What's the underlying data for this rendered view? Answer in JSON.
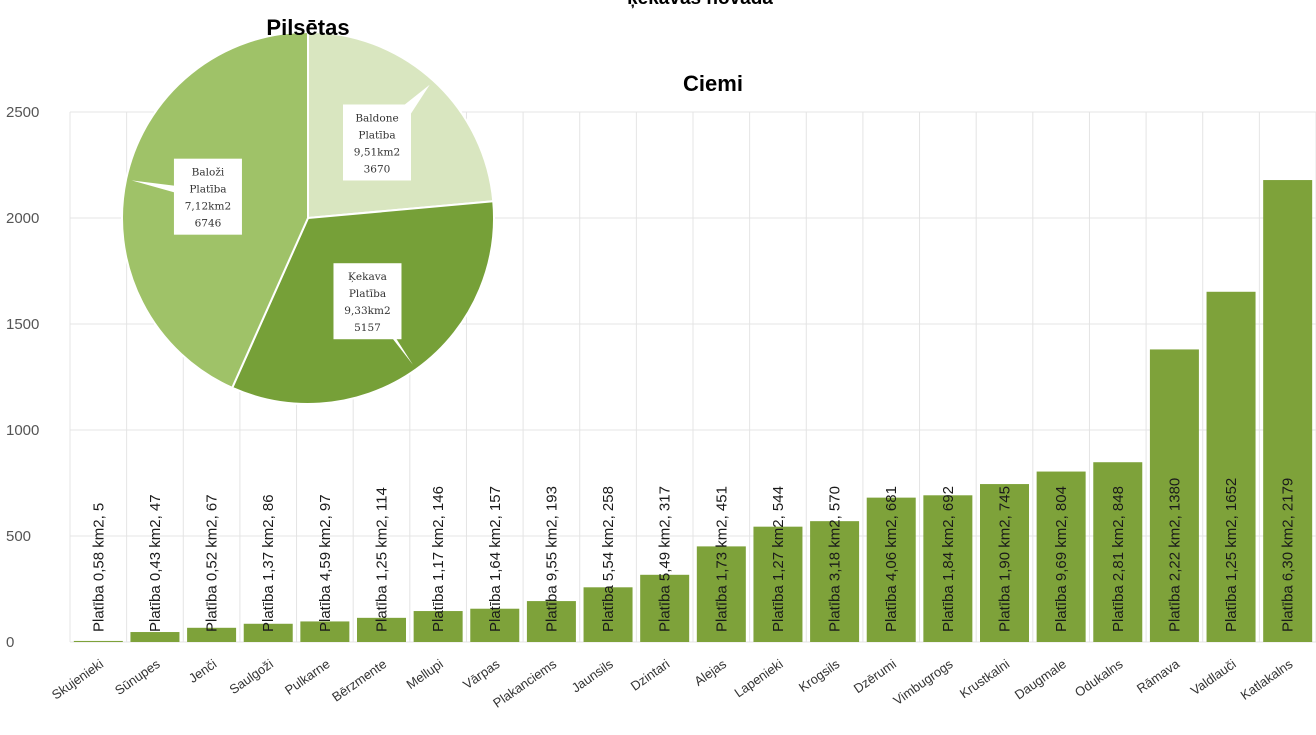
{
  "header_fragment": "ķekavas novadā",
  "pie_title": "Pilsētas",
  "bar_title": "Ciemi",
  "colors": {
    "bar": "#7ea23a",
    "grid": "#e4e4e4",
    "pie_baldone": "#d9e6c0",
    "pie_kekava": "#76a038",
    "pie_balozi": "#9fc268"
  },
  "chart_data": [
    {
      "type": "pie",
      "title": "Pilsētas",
      "slices": [
        {
          "lines": [
            "Baldone",
            "Platība",
            "9,51km2",
            "3670"
          ],
          "value": 3670
        },
        {
          "lines": [
            "Ķekava",
            "Platība",
            "9,33km2",
            "5157"
          ],
          "value": 5157
        },
        {
          "lines": [
            "Baloži",
            "Platība",
            "7,12km2",
            "6746"
          ],
          "value": 6746
        }
      ]
    },
    {
      "type": "bar",
      "title": "Ciemi",
      "ylim": [
        0,
        2500
      ],
      "yticks": [
        "0",
        "500",
        "1000",
        "1500",
        "2000",
        "2500"
      ],
      "grid": true,
      "categories": [
        "Skujenieki",
        "Sūnupes",
        "Jenči",
        "Saulgoži",
        "Pulkarne",
        "Bērzmente",
        "Mellupi",
        "Vārpas",
        "Plakanciems",
        "Jaunsils",
        "Dzintari",
        "Alejas",
        "Lapenieki",
        "Krogsils",
        "Dzērumi",
        "Vimbugrogs",
        "Krustkalni",
        "Daugmale",
        "Odukalns",
        "Rāmava",
        "Valdlauči",
        "Katlakalns"
      ],
      "values": [
        5,
        47,
        67,
        86,
        97,
        114,
        146,
        157,
        193,
        258,
        317,
        451,
        544,
        570,
        681,
        692,
        745,
        804,
        848,
        1380,
        1652,
        2179
      ],
      "labels": [
        "Platība 0,58 km2, 5",
        "Platība 0,43 km2, 47",
        "Platība 0,52 km2, 67",
        "Platība 1,37 km2, 86",
        "Platība 4,59 km2, 97",
        "Platība 1,25 km2, 114",
        "Platība 1,17 km2, 146",
        "Platība 1,64 km2, 157",
        "Platība 9,55 km2, 193",
        "Platība 5,54 km2, 258",
        "Platība 5,49 km2, 317",
        "Platība 1,73 km2, 451",
        "Platība 1,27 km2, 544",
        "Platība 3,18 km2, 570",
        "Platība 4,06 km2, 681",
        "Platība 1,84 km2, 692",
        "Platība 1,90 km2, 745",
        "Platība 9,69 km2, 804",
        "Platība 2,81 km2, 848",
        "Platība 2,22 km2, 1380",
        "Platība 1,25 km2, 1652",
        "Platība 6,30 km2, 2179"
      ]
    }
  ]
}
